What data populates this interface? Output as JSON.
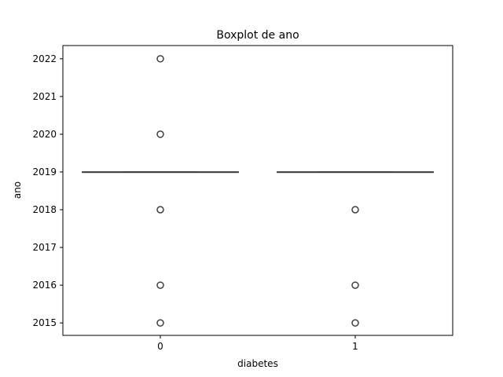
{
  "chart_data": {
    "type": "boxplot",
    "title": "Boxplot de ano",
    "xlabel": "diabetes",
    "ylabel": "ano",
    "categories": [
      "0",
      "1"
    ],
    "ylim": [
      2014.67,
      2022.35
    ],
    "yticks": [
      2015,
      2016,
      2017,
      2018,
      2019,
      2020,
      2021,
      2022
    ],
    "grid": false,
    "boxes": [
      {
        "category": "0",
        "whisker_low": 2019,
        "q1": 2019,
        "median": 2019,
        "q3": 2019,
        "whisker_high": 2019,
        "outliers": [
          2022,
          2020,
          2018,
          2016,
          2015
        ]
      },
      {
        "category": "1",
        "whisker_low": 2019,
        "q1": 2019,
        "median": 2019,
        "q3": 2019,
        "whisker_high": 2019,
        "outliers": [
          2018,
          2016,
          2015
        ]
      }
    ]
  }
}
